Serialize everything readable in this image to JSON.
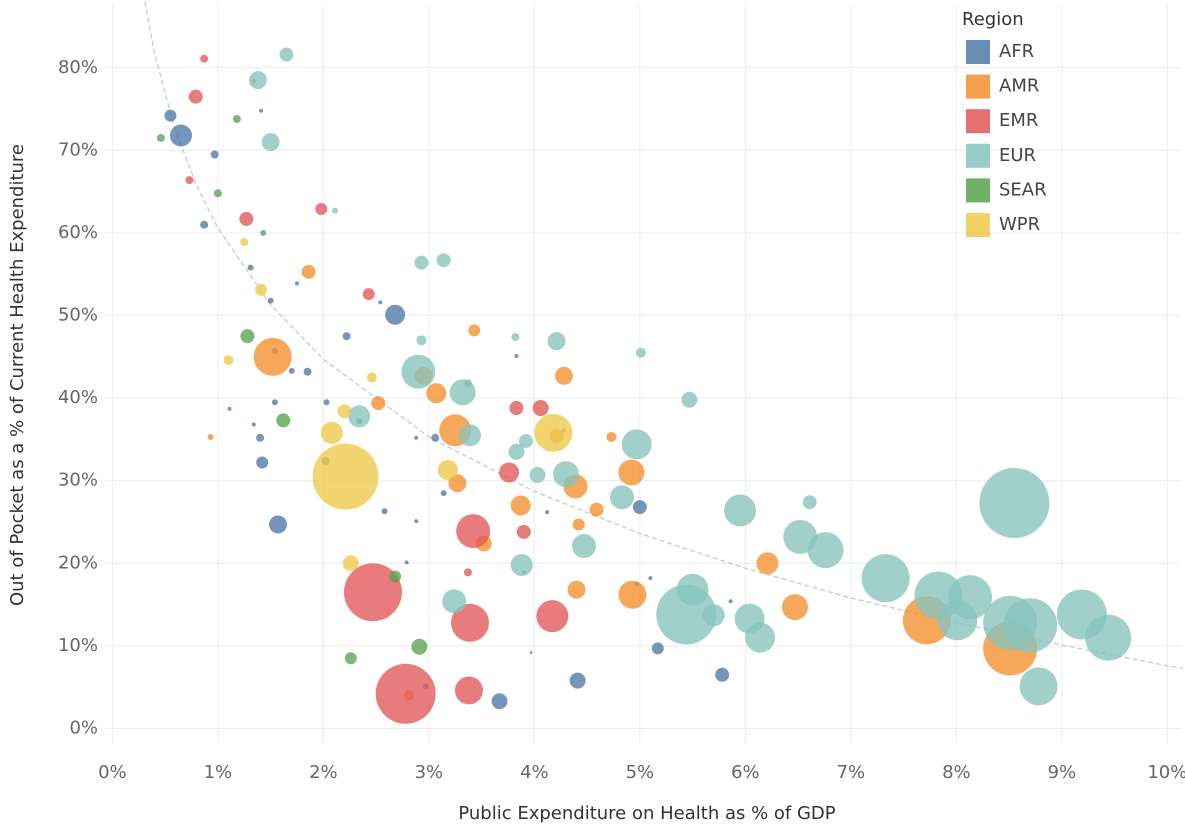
{
  "chart_data": {
    "type": "scatter",
    "x_label": "Public Expenditure on Health as % of GDP",
    "y_label": "Out of Pocket as a % of Current Health Expenditure",
    "legend_title": "Region",
    "legend_position": "top-right",
    "grid": true,
    "xlim": [
      -0.07,
      10.12
    ],
    "ylim": [
      -2,
      87.6
    ],
    "xticks": [
      {
        "value": 0,
        "label": "0%"
      },
      {
        "value": 1,
        "label": "1%"
      },
      {
        "value": 2,
        "label": "2%"
      },
      {
        "value": 3,
        "label": "3%"
      },
      {
        "value": 4,
        "label": "4%"
      },
      {
        "value": 5,
        "label": "5%"
      },
      {
        "value": 6,
        "label": "6%"
      },
      {
        "value": 7,
        "label": "7%"
      },
      {
        "value": 8,
        "label": "8%"
      },
      {
        "value": 9,
        "label": "9%"
      },
      {
        "value": 10,
        "label": "10%"
      }
    ],
    "yticks": [
      {
        "value": 0,
        "label": "0%"
      },
      {
        "value": 10,
        "label": "10%"
      },
      {
        "value": 20,
        "label": "20%"
      },
      {
        "value": 30,
        "label": "30%"
      },
      {
        "value": 40,
        "label": "40%"
      },
      {
        "value": 50,
        "label": "50%"
      },
      {
        "value": 60,
        "label": "60%"
      },
      {
        "value": 70,
        "label": "70%"
      },
      {
        "value": 80,
        "label": "80%"
      }
    ],
    "trendline": {
      "color": "#c8c8c8",
      "x": [
        0.28,
        0.4,
        0.6,
        0.8,
        1,
        1.5,
        2,
        3,
        4,
        5,
        6,
        7,
        8,
        9,
        10,
        10.15
      ],
      "y": [
        89.9,
        81.7,
        72.3,
        65.7,
        60.6,
        51.3,
        44.7,
        35.3,
        28.7,
        23.6,
        19.4,
        15.8,
        12.8,
        10.1,
        7.6,
        7.3
      ]
    },
    "series": [
      {
        "name": "AFR",
        "color": "#4e79a7",
        "x": [
          0.55,
          0.65,
          0.97,
          0.87,
          1.41,
          1.31,
          1.75,
          1.5,
          1.54,
          1.85,
          1.7,
          1.54,
          1.34,
          1.11,
          1.4,
          1.42,
          1.57,
          2.22,
          2.03,
          2.02,
          2.68,
          2.54,
          2.34,
          2.58,
          2.88,
          2.79,
          2.88,
          3.06,
          3.14,
          3.37,
          3.83,
          2.97,
          3.67,
          4.12,
          3.9,
          3.97,
          4.28,
          4.41,
          4.97,
          5.1,
          5.0,
          5.17,
          5.86,
          5.78
        ],
        "y": [
          74.2,
          71.8,
          69.5,
          61,
          74.8,
          55.8,
          53.9,
          51.8,
          45.7,
          43.2,
          43.3,
          39.5,
          36.8,
          38.7,
          35.2,
          32.2,
          24.7,
          47.5,
          39.5,
          32.4,
          50.1,
          51.6,
          37.2,
          26.3,
          25.1,
          20.1,
          35.2,
          35.2,
          28.5,
          41.7,
          45.1,
          5.1,
          3.3,
          26.2,
          18.9,
          9.2,
          36.1,
          5.8,
          17.5,
          18.2,
          26.8,
          9.7,
          15.4,
          6.5
        ],
        "sizes": [
          36,
          121,
          16,
          16,
          4,
          9,
          4,
          9,
          9,
          16,
          9,
          9,
          4,
          4,
          16,
          36,
          81,
          16,
          9,
          16,
          100,
          4,
          9,
          9,
          4,
          4,
          4,
          16,
          9,
          9,
          4,
          9,
          64,
          4,
          4,
          2,
          4,
          64,
          4,
          4,
          49,
          36,
          4,
          49
        ]
      },
      {
        "name": "AMR",
        "color": "#f28e2b",
        "x": [
          1.86,
          1.52,
          0.93,
          2.52,
          2.95,
          3.07,
          3.43,
          3.25,
          3.27,
          3.52,
          3.87,
          4.21,
          4.28,
          4.39,
          4.73,
          4.59,
          4.42,
          4.4,
          4.92,
          4.93,
          2.81,
          6.21,
          6.47,
          7.72,
          8.51
        ],
        "y": [
          55.3,
          45.0,
          35.3,
          39.4,
          42.7,
          40.6,
          48.2,
          36.1,
          29.7,
          22.4,
          27.0,
          35.4,
          42.7,
          29.3,
          35.3,
          26.5,
          24.7,
          16.8,
          31.0,
          16.2,
          4.0,
          20.0,
          14.7,
          13.1,
          9.7
        ],
        "sizes": [
          49,
          361,
          9,
          49,
          81,
          100,
          36,
          256,
          81,
          64,
          100,
          49,
          81,
          144,
          25,
          49,
          36,
          81,
          169,
          196,
          25,
          121,
          169,
          576,
          729
        ]
      },
      {
        "name": "EMR",
        "color": "#e15759",
        "x": [
          0.87,
          0.79,
          1.34,
          0.73,
          1.27,
          1.98,
          2.43,
          3.83,
          4.06,
          3.76,
          3.9,
          3.42,
          3.37,
          2.47,
          3.39,
          4.17,
          2.78,
          3.38
        ],
        "y": [
          81.1,
          76.5,
          78.4,
          66.4,
          61.7,
          62.9,
          52.6,
          38.8,
          38.8,
          31.0,
          23.8,
          23.9,
          18.9,
          16.5,
          12.8,
          13.6,
          4.2,
          4.6
        ],
        "sizes": [
          16,
          49,
          4,
          16,
          49,
          36,
          36,
          49,
          64,
          100,
          49,
          289,
          16,
          841,
          361,
          256,
          900,
          196
        ]
      },
      {
        "name": "EUR",
        "color": "#86c3bc",
        "x": [
          1.65,
          1.38,
          1.5,
          2.11,
          2.93,
          3.14,
          2.93,
          3.82,
          4.21,
          5.01,
          2.9,
          3.32,
          3.37,
          2.34,
          3.39,
          3.92,
          3.83,
          4.03,
          4.3,
          4.97,
          5.47,
          4.83,
          4.47,
          3.88,
          3.24,
          5.95,
          6.61,
          6.52,
          6.76,
          5.5,
          5.44,
          5.7,
          6.04,
          6.14,
          7.33,
          7.83,
          8.01,
          8.13,
          8.55,
          8.51,
          8.7,
          9.19,
          9.44,
          8.78
        ],
        "y": [
          81.6,
          78.5,
          71.0,
          62.7,
          56.4,
          56.7,
          47.0,
          47.4,
          46.9,
          45.5,
          43.2,
          40.7,
          41.8,
          37.8,
          35.5,
          34.8,
          33.5,
          30.7,
          30.8,
          34.4,
          39.8,
          28.0,
          22.1,
          19.8,
          15.4,
          26.4,
          27.4,
          23.2,
          21.6,
          16.8,
          13.8,
          13.7,
          13.3,
          11.0,
          18.2,
          16.1,
          13.1,
          15.9,
          27.3,
          12.8,
          12.5,
          13.8,
          11.0,
          5.1
        ],
        "sizes": [
          49,
          81,
          81,
          9,
          49,
          49,
          25,
          16,
          81,
          25,
          289,
          169,
          16,
          121,
          121,
          49,
          64,
          64,
          169,
          225,
          64,
          144,
          144,
          121,
          144,
          256,
          49,
          289,
          324,
          256,
          900,
          121,
          225,
          225,
          576,
          576,
          400,
          484,
          1225,
          729,
          729,
          625,
          529,
          361
        ]
      },
      {
        "name": "SEAR",
        "color": "#59a14f",
        "x": [
          0.46,
          1.18,
          1.0,
          1.43,
          1.28,
          1.62,
          2.68,
          2.91,
          2.26
        ],
        "y": [
          71.5,
          73.8,
          64.8,
          60.0,
          47.5,
          37.3,
          18.4,
          9.9,
          8.5
        ],
        "sizes": [
          16,
          16,
          16,
          9,
          49,
          49,
          36,
          64,
          36
        ]
      },
      {
        "name": "WPR",
        "color": "#edc948",
        "x": [
          1.25,
          1.41,
          1.1,
          2.46,
          2.2,
          2.08,
          2.21,
          3.18,
          4.18,
          2.26
        ],
        "y": [
          58.9,
          53.1,
          44.6,
          42.5,
          38.4,
          35.8,
          30.5,
          31.3,
          35.8,
          20.0
        ],
        "sizes": [
          16,
          36,
          25,
          25,
          49,
          121,
          1089,
          100,
          361,
          64
        ]
      }
    ]
  }
}
